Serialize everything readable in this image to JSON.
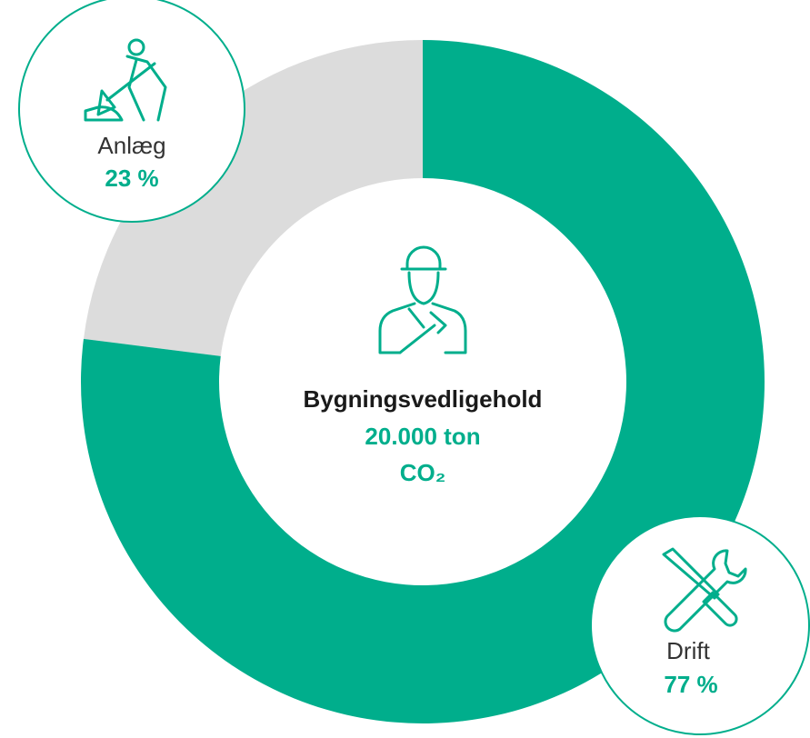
{
  "chart_data": {
    "type": "donut",
    "categories": [
      "Anlæg",
      "Drift"
    ],
    "values": [
      23,
      77
    ],
    "value_labels": [
      "23 %",
      "77 %"
    ],
    "colors": [
      "#dcdcdc",
      "#00ae8c"
    ],
    "center_title": "Bygningsvedligehold",
    "center_value": "20.000 ton",
    "center_unit": "CO₂"
  }
}
